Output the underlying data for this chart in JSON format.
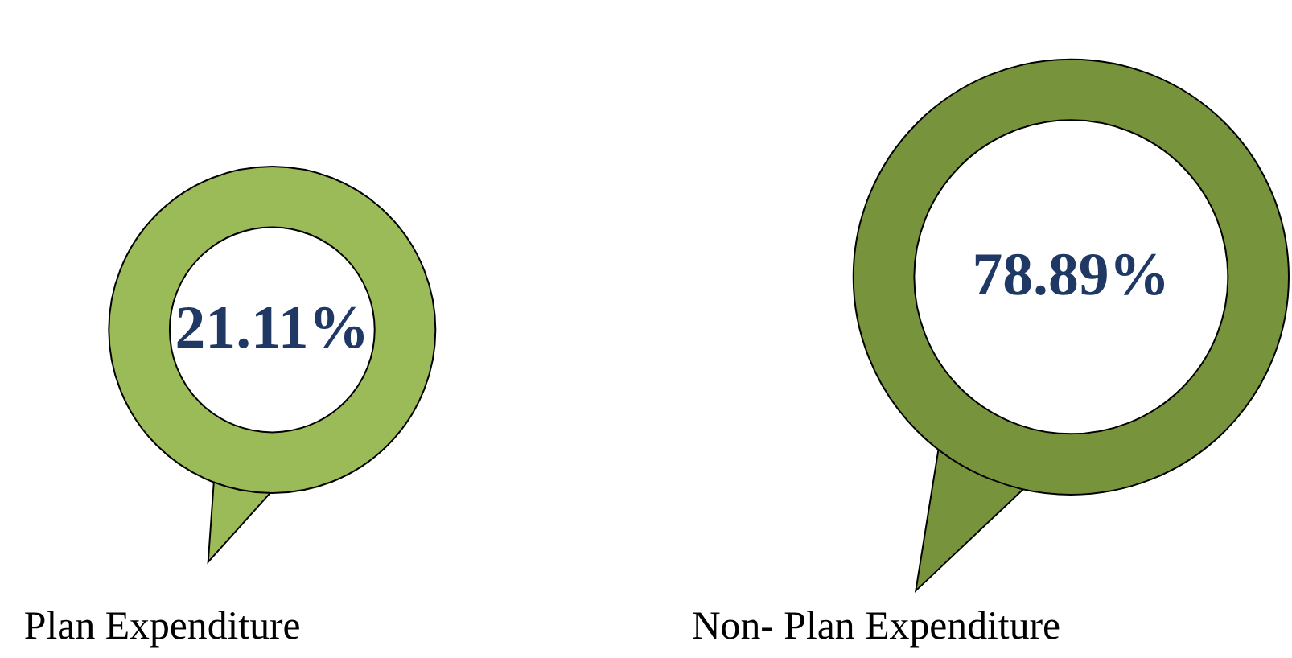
{
  "chart_data": {
    "type": "other",
    "categories": [
      "Plan Expenditure",
      "Non- Plan Expenditure"
    ],
    "values": [
      21.11,
      78.89
    ],
    "value_labels": [
      "21.11%",
      "78.89%"
    ],
    "colors": [
      "#9bbb59",
      "#77933c"
    ]
  }
}
